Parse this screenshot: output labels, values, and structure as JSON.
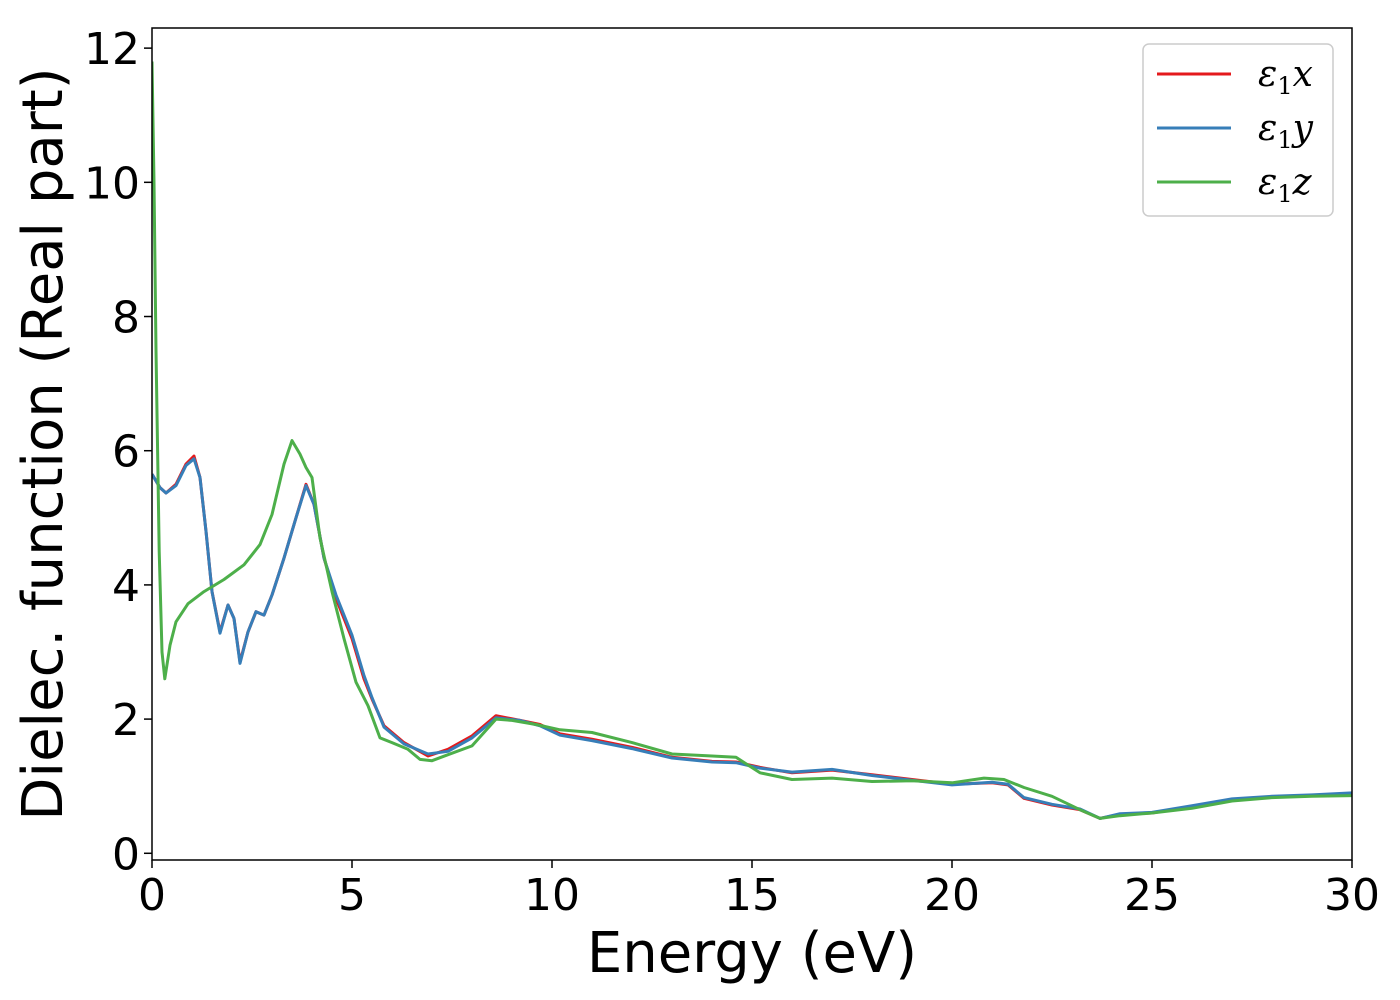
{
  "chart_data": {
    "type": "line",
    "title": "",
    "xlabel": "Energy (eV)",
    "ylabel": "Dielec. function (Real part)",
    "xlim": [
      0,
      30
    ],
    "ylim": [
      -0.1,
      12.3
    ],
    "xticks": [
      0,
      5,
      10,
      15,
      20,
      25,
      30
    ],
    "yticks": [
      0,
      2,
      4,
      6,
      8,
      10,
      12
    ],
    "grid": false,
    "legend_position": "top-right",
    "series": [
      {
        "name": "ε1x",
        "legend_base": "ε",
        "legend_sub": "1",
        "legend_suffix": "x",
        "color": "#e41a1c",
        "points": [
          [
            0,
            5.65
          ],
          [
            0.2,
            5.45
          ],
          [
            0.35,
            5.37
          ],
          [
            0.6,
            5.5
          ],
          [
            0.85,
            5.8
          ],
          [
            1.05,
            5.92
          ],
          [
            1.2,
            5.6
          ],
          [
            1.35,
            4.8
          ],
          [
            1.5,
            3.9
          ],
          [
            1.7,
            3.3
          ],
          [
            1.9,
            3.7
          ],
          [
            2.05,
            3.5
          ],
          [
            2.2,
            2.85
          ],
          [
            2.4,
            3.3
          ],
          [
            2.6,
            3.6
          ],
          [
            2.8,
            3.55
          ],
          [
            3.0,
            3.85
          ],
          [
            3.3,
            4.4
          ],
          [
            3.6,
            5.0
          ],
          [
            3.85,
            5.5
          ],
          [
            4.05,
            5.2
          ],
          [
            4.3,
            4.4
          ],
          [
            4.6,
            3.8
          ],
          [
            5.0,
            3.2
          ],
          [
            5.3,
            2.6
          ],
          [
            5.5,
            2.3
          ],
          [
            5.8,
            1.9
          ],
          [
            6.3,
            1.65
          ],
          [
            6.9,
            1.45
          ],
          [
            7.4,
            1.55
          ],
          [
            8.0,
            1.75
          ],
          [
            8.6,
            2.05
          ],
          [
            9.2,
            1.98
          ],
          [
            9.7,
            1.92
          ],
          [
            10.2,
            1.78
          ],
          [
            11.0,
            1.7
          ],
          [
            12.0,
            1.58
          ],
          [
            13.0,
            1.43
          ],
          [
            14.0,
            1.37
          ],
          [
            14.6,
            1.36
          ],
          [
            15.2,
            1.28
          ],
          [
            16.0,
            1.2
          ],
          [
            17.0,
            1.24
          ],
          [
            18.0,
            1.17
          ],
          [
            19.0,
            1.1
          ],
          [
            20.0,
            1.03
          ],
          [
            21.0,
            1.05
          ],
          [
            21.4,
            1.02
          ],
          [
            21.8,
            0.82
          ],
          [
            22.5,
            0.72
          ],
          [
            23.2,
            0.65
          ],
          [
            23.7,
            0.52
          ],
          [
            24.2,
            0.58
          ],
          [
            25.0,
            0.6
          ],
          [
            26.0,
            0.7
          ],
          [
            27.0,
            0.8
          ],
          [
            28.0,
            0.84
          ],
          [
            29.0,
            0.86
          ],
          [
            30.0,
            0.89
          ]
        ]
      },
      {
        "name": "ε1y",
        "legend_base": "ε",
        "legend_sub": "1",
        "legend_suffix": "y",
        "color": "#377eb8",
        "points": [
          [
            0,
            5.65
          ],
          [
            0.2,
            5.45
          ],
          [
            0.35,
            5.37
          ],
          [
            0.6,
            5.48
          ],
          [
            0.85,
            5.78
          ],
          [
            1.05,
            5.88
          ],
          [
            1.2,
            5.6
          ],
          [
            1.35,
            4.8
          ],
          [
            1.5,
            3.9
          ],
          [
            1.7,
            3.28
          ],
          [
            1.9,
            3.7
          ],
          [
            2.05,
            3.5
          ],
          [
            2.2,
            2.83
          ],
          [
            2.4,
            3.3
          ],
          [
            2.6,
            3.6
          ],
          [
            2.8,
            3.55
          ],
          [
            3.0,
            3.85
          ],
          [
            3.3,
            4.4
          ],
          [
            3.6,
            5.0
          ],
          [
            3.85,
            5.48
          ],
          [
            4.05,
            5.2
          ],
          [
            4.3,
            4.4
          ],
          [
            4.6,
            3.85
          ],
          [
            5.0,
            3.25
          ],
          [
            5.3,
            2.65
          ],
          [
            5.5,
            2.32
          ],
          [
            5.8,
            1.88
          ],
          [
            6.3,
            1.63
          ],
          [
            6.9,
            1.48
          ],
          [
            7.4,
            1.52
          ],
          [
            8.0,
            1.72
          ],
          [
            8.6,
            2.02
          ],
          [
            9.2,
            1.98
          ],
          [
            9.7,
            1.9
          ],
          [
            10.2,
            1.76
          ],
          [
            11.0,
            1.68
          ],
          [
            12.0,
            1.56
          ],
          [
            13.0,
            1.42
          ],
          [
            14.0,
            1.36
          ],
          [
            14.6,
            1.35
          ],
          [
            15.2,
            1.27
          ],
          [
            16.0,
            1.21
          ],
          [
            17.0,
            1.25
          ],
          [
            18.0,
            1.16
          ],
          [
            19.0,
            1.09
          ],
          [
            20.0,
            1.02
          ],
          [
            21.0,
            1.06
          ],
          [
            21.4,
            1.03
          ],
          [
            21.8,
            0.83
          ],
          [
            22.5,
            0.73
          ],
          [
            23.2,
            0.66
          ],
          [
            23.7,
            0.52
          ],
          [
            24.2,
            0.59
          ],
          [
            25.0,
            0.61
          ],
          [
            26.0,
            0.71
          ],
          [
            27.0,
            0.81
          ],
          [
            28.0,
            0.85
          ],
          [
            29.0,
            0.87
          ],
          [
            30.0,
            0.9
          ]
        ]
      },
      {
        "name": "ε1z",
        "legend_base": "ε",
        "legend_sub": "1",
        "legend_suffix": "z",
        "color": "#4daf4a",
        "points": [
          [
            0,
            11.8
          ],
          [
            0.05,
            10.0
          ],
          [
            0.1,
            7.5
          ],
          [
            0.18,
            4.5
          ],
          [
            0.25,
            3.0
          ],
          [
            0.32,
            2.6
          ],
          [
            0.45,
            3.1
          ],
          [
            0.6,
            3.45
          ],
          [
            0.9,
            3.72
          ],
          [
            1.3,
            3.9
          ],
          [
            1.8,
            4.08
          ],
          [
            2.3,
            4.3
          ],
          [
            2.7,
            4.6
          ],
          [
            3.0,
            5.05
          ],
          [
            3.3,
            5.8
          ],
          [
            3.5,
            6.15
          ],
          [
            3.7,
            5.95
          ],
          [
            3.85,
            5.75
          ],
          [
            4.0,
            5.6
          ],
          [
            4.2,
            4.7
          ],
          [
            4.5,
            3.9
          ],
          [
            4.8,
            3.2
          ],
          [
            5.1,
            2.55
          ],
          [
            5.4,
            2.2
          ],
          [
            5.7,
            1.72
          ],
          [
            6.0,
            1.65
          ],
          [
            6.4,
            1.55
          ],
          [
            6.7,
            1.4
          ],
          [
            7.0,
            1.38
          ],
          [
            7.4,
            1.47
          ],
          [
            8.0,
            1.6
          ],
          [
            8.6,
            2.0
          ],
          [
            9.0,
            1.98
          ],
          [
            9.6,
            1.92
          ],
          [
            10.2,
            1.84
          ],
          [
            11.0,
            1.8
          ],
          [
            12.0,
            1.65
          ],
          [
            13.0,
            1.48
          ],
          [
            14.0,
            1.45
          ],
          [
            14.6,
            1.43
          ],
          [
            15.2,
            1.2
          ],
          [
            16.0,
            1.1
          ],
          [
            17.0,
            1.12
          ],
          [
            18.0,
            1.07
          ],
          [
            19.0,
            1.08
          ],
          [
            20.0,
            1.05
          ],
          [
            20.8,
            1.12
          ],
          [
            21.3,
            1.1
          ],
          [
            21.8,
            0.98
          ],
          [
            22.5,
            0.85
          ],
          [
            23.2,
            0.65
          ],
          [
            23.7,
            0.52
          ],
          [
            24.2,
            0.56
          ],
          [
            25.0,
            0.6
          ],
          [
            26.0,
            0.67
          ],
          [
            27.0,
            0.78
          ],
          [
            28.0,
            0.83
          ],
          [
            29.0,
            0.85
          ],
          [
            30.0,
            0.86
          ]
        ]
      }
    ]
  }
}
